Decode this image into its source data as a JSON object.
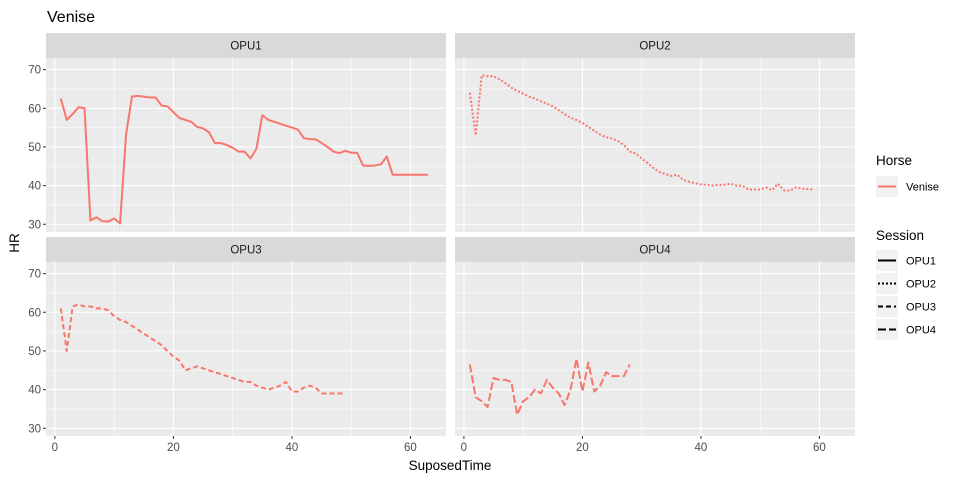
{
  "chart_data": {
    "type": "line",
    "title": "Venise",
    "xlabel": "SuposedTime",
    "ylabel": "HR",
    "xlim": [
      -1.5,
      66
    ],
    "ylim": [
      28,
      73
    ],
    "x_ticks": [
      0,
      20,
      40,
      60
    ],
    "y_ticks": [
      30,
      40,
      50,
      60,
      70
    ],
    "grid": true,
    "legend_position": "right",
    "color": "#F8766D",
    "legend": {
      "horse_title": "Horse",
      "horse_items": [
        "Venise"
      ],
      "session_title": "Session",
      "session_items": [
        "OPU1",
        "OPU2",
        "OPU3",
        "OPU4"
      ]
    },
    "panels": [
      {
        "name": "OPU1",
        "linetype": "solid",
        "x": [
          1,
          2,
          3,
          4,
          5,
          6,
          7,
          8,
          9,
          10,
          11,
          12,
          13,
          14,
          15,
          16,
          17,
          18,
          19,
          20,
          21,
          22,
          23,
          24,
          25,
          26,
          27,
          28,
          29,
          30,
          31,
          32,
          33,
          34,
          35,
          36,
          37,
          38,
          39,
          40,
          41,
          42,
          43,
          44,
          45,
          46,
          47,
          48,
          49,
          50,
          51,
          52,
          53,
          54,
          55,
          56,
          57,
          58,
          59,
          60,
          61,
          62,
          63
        ],
        "y": [
          62.5,
          57,
          58.5,
          60.3,
          60,
          31,
          31.8,
          30.8,
          30.7,
          31.5,
          30.2,
          53,
          63,
          63.2,
          63,
          62.8,
          62.8,
          60.7,
          60.5,
          59,
          57.5,
          57,
          56.5,
          55.2,
          54.8,
          53.8,
          51,
          51,
          50.5,
          49.8,
          48.8,
          48.8,
          47,
          49.5,
          58.2,
          57,
          56.5,
          56,
          55.5,
          55,
          54.5,
          52.3,
          52,
          52,
          51,
          50,
          48.8,
          48.4,
          49,
          48.5,
          48.5,
          45.2,
          45.1,
          45.2,
          45.5,
          47.5,
          42.8,
          42.8,
          42.8,
          42.8,
          42.8,
          42.8,
          42.8
        ]
      },
      {
        "name": "OPU2",
        "linetype": "dotted",
        "x": [
          1,
          2,
          3,
          4,
          5,
          6,
          7,
          8,
          9,
          10,
          11,
          12,
          13,
          14,
          15,
          16,
          17,
          18,
          19,
          20,
          21,
          22,
          23,
          24,
          25,
          26,
          27,
          28,
          29,
          30,
          31,
          32,
          33,
          34,
          35,
          36,
          37,
          38,
          39,
          40,
          41,
          42,
          43,
          44,
          45,
          46,
          47,
          48,
          49,
          50,
          51,
          52,
          53,
          54,
          55,
          56,
          57,
          58,
          59
        ],
        "y": [
          64,
          53,
          68.5,
          68.3,
          68.3,
          67.5,
          66.5,
          65.3,
          64.5,
          63.8,
          63,
          62.5,
          61.8,
          61.2,
          60.5,
          59.5,
          58.5,
          57.5,
          57,
          56.2,
          55.2,
          54.2,
          53.2,
          52.5,
          52.2,
          51.5,
          50.5,
          48.8,
          48.3,
          47,
          45.8,
          44.5,
          43.5,
          43,
          42.5,
          42.8,
          41.5,
          41,
          40.6,
          40.3,
          40.2,
          40,
          40.2,
          40.2,
          40.5,
          40,
          40,
          39,
          39,
          39,
          39.5,
          38.8,
          40.5,
          38.8,
          38.7,
          39.5,
          39.2,
          39.1,
          39
        ]
      },
      {
        "name": "OPU3",
        "linetype": "dashed",
        "x": [
          1,
          2,
          3,
          4,
          5,
          6,
          7,
          8,
          9,
          10,
          11,
          12,
          13,
          14,
          15,
          16,
          17,
          18,
          19,
          20,
          21,
          22,
          23,
          24,
          25,
          26,
          27,
          28,
          29,
          30,
          31,
          32,
          33,
          34,
          35,
          36,
          37,
          38,
          39,
          40,
          41,
          42,
          43,
          44,
          45,
          46,
          47,
          48,
          49
        ],
        "y": [
          61,
          50,
          61.5,
          62,
          61.5,
          61.5,
          61,
          61,
          60.5,
          59,
          58,
          57.5,
          56.5,
          55.5,
          54.5,
          53.5,
          52.5,
          51.5,
          50,
          48.5,
          47.5,
          45,
          45.5,
          46,
          45.5,
          45,
          44.5,
          44,
          43.5,
          43,
          42.5,
          42,
          42,
          41,
          40.5,
          40,
          40.5,
          41,
          42,
          39.5,
          39.5,
          40.5,
          41,
          40.5,
          39,
          39,
          39,
          39,
          39
        ]
      },
      {
        "name": "OPU4",
        "linetype": "longdash",
        "x": [
          1,
          2,
          3,
          4,
          5,
          6,
          7,
          8,
          9,
          10,
          11,
          12,
          13,
          14,
          15,
          16,
          17,
          18,
          19,
          20,
          21,
          22,
          23,
          24,
          25,
          26,
          27,
          28
        ],
        "y": [
          46.5,
          38,
          37,
          35.5,
          43,
          42.5,
          42.5,
          42,
          33.5,
          37,
          38,
          40,
          39,
          42.5,
          40.5,
          39,
          36,
          40,
          48,
          39.5,
          47,
          39.5,
          41,
          44.5,
          43.5,
          43.5,
          43.5,
          46.5
        ]
      }
    ]
  }
}
